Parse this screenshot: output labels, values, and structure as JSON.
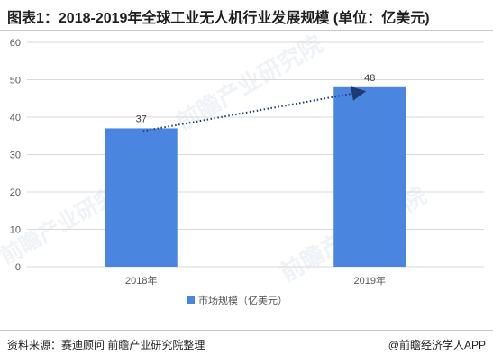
{
  "title": "图表1：2018-2019年全球工业无人机行业发展规模 (单位：亿美元)",
  "source": "资料来源：赛迪顾问 前瞻产业研究院整理",
  "credit": "@前瞻经济学人APP",
  "watermark": "前瞻产业研究院",
  "colors": {
    "bar": "#4a86e0",
    "grid": "#d9d9d9",
    "axis": "#595959",
    "arrow": "#1f3a6e"
  },
  "chart_data": {
    "type": "bar",
    "title": "",
    "xlabel": "",
    "ylabel": "",
    "categories": [
      "2018年",
      "2019年"
    ],
    "series": [
      {
        "name": "市场规模（亿美元）",
        "values": [
          37,
          48
        ]
      }
    ],
    "data_labels": [
      "37",
      "48"
    ],
    "ylim": [
      0,
      60
    ],
    "yticks": [
      0,
      10,
      20,
      30,
      40,
      50,
      60
    ],
    "grid": true,
    "legend": "bottom-center",
    "trend_arrow": {
      "from": "2018年",
      "to": "2019年",
      "style": "dotted"
    }
  }
}
